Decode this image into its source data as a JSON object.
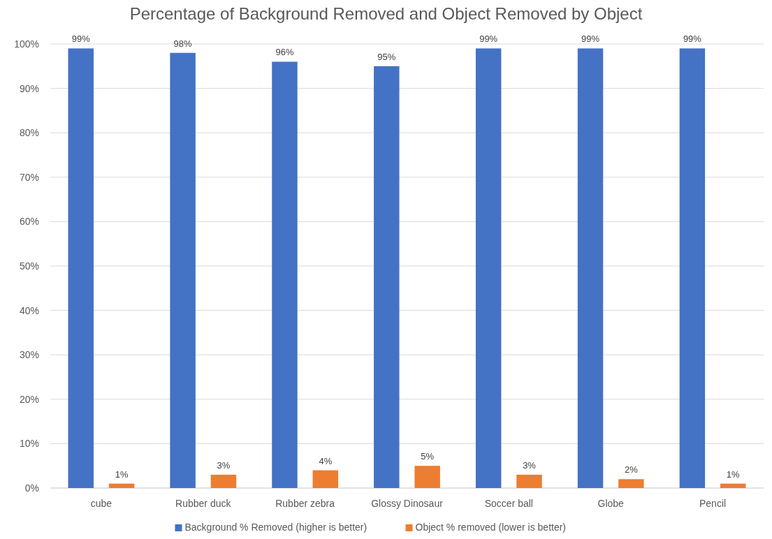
{
  "chart_data": {
    "type": "bar",
    "title": "Percentage of Background Removed and Object Removed by Object",
    "categories": [
      "cube",
      "Rubber duck",
      "Rubber zebra",
      "Glossy Dinosaur",
      "Soccer ball",
      "Globe",
      "Pencil"
    ],
    "series": [
      {
        "name": "Background % Removed (higher is better)",
        "color": "#4472c4",
        "values": [
          99,
          98,
          96,
          95,
          99,
          99,
          99
        ],
        "value_labels": [
          "99%",
          "98%",
          "96%",
          "95%",
          "99%",
          "99%",
          "99%"
        ]
      },
      {
        "name": "Object % removed (lower is better)",
        "color": "#ed7d31",
        "values": [
          1,
          3,
          4,
          5,
          3,
          2,
          1
        ],
        "value_labels": [
          "1%",
          "3%",
          "4%",
          "5%",
          "3%",
          "2%",
          "1%"
        ]
      }
    ],
    "ylim": [
      0,
      100
    ],
    "yticks": [
      {
        "value": 0,
        "label": "0%"
      },
      {
        "value": 10,
        "label": "10%"
      },
      {
        "value": 20,
        "label": "20%"
      },
      {
        "value": 30,
        "label": "30%"
      },
      {
        "value": 40,
        "label": "40%"
      },
      {
        "value": 50,
        "label": "50%"
      },
      {
        "value": 60,
        "label": "60%"
      },
      {
        "value": 70,
        "label": "70%"
      },
      {
        "value": 80,
        "label": "80%"
      },
      {
        "value": 90,
        "label": "90%"
      },
      {
        "value": 100,
        "label": "100%"
      }
    ],
    "grid": "y",
    "legend": "bottom"
  }
}
